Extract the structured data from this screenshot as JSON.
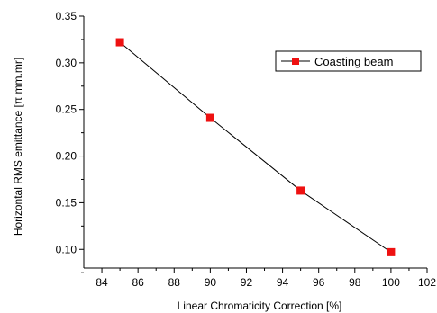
{
  "chart_data": {
    "type": "line",
    "title": "",
    "xlabel": "Linear Chromaticity Correction [%]",
    "ylabel": "Horizontal RMS emittance [π mm.mr]",
    "xlim": [
      83,
      102
    ],
    "ylim": [
      0.08,
      0.35
    ],
    "xticks": [
      "84",
      "86",
      "88",
      "90",
      "92",
      "94",
      "96",
      "98",
      "100",
      "102"
    ],
    "yticks": [
      "0.10",
      "0.15",
      "0.20",
      "0.25",
      "0.30",
      "0.35"
    ],
    "grid": false,
    "legend_position": "top-right",
    "series": [
      {
        "name": "Coasting beam",
        "color": "#ee1111",
        "marker": "square",
        "x": [
          85,
          90,
          95,
          100
        ],
        "y": [
          0.322,
          0.241,
          0.163,
          0.097
        ]
      }
    ]
  }
}
